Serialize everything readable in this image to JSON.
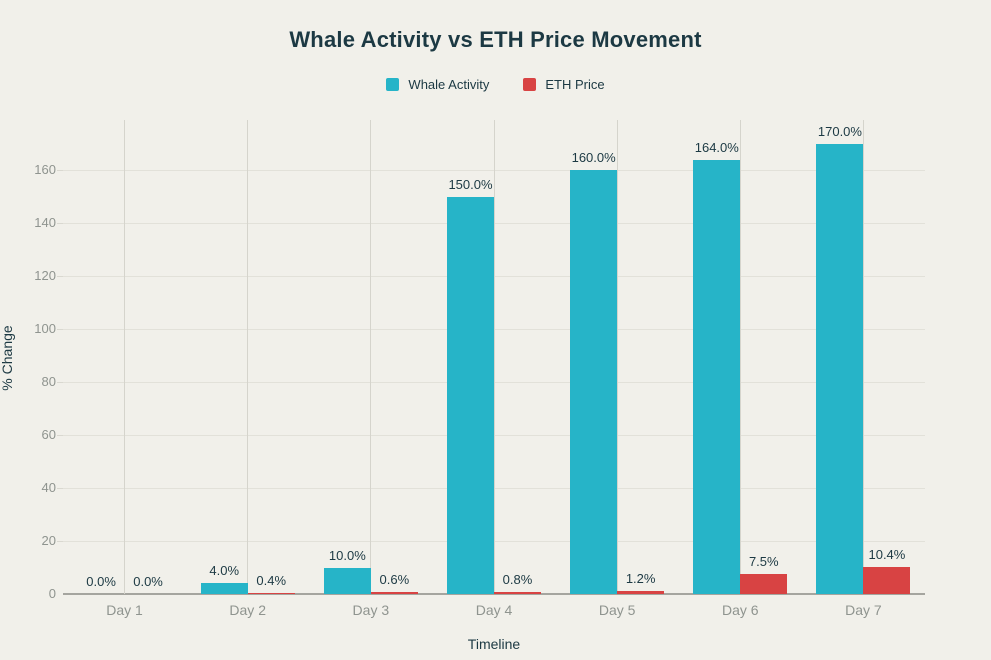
{
  "title": "Whale Activity vs ETH Price Movement",
  "colors": {
    "background": "#f1f0ea",
    "text_dark": "#1c3943",
    "text_gray": "#8f948f",
    "grid_horizontal": "#e2e1d9",
    "grid_vertical": "#d5d4cc",
    "tick_mark": "#d9d8d0",
    "axis_baseline": "#a5a59f",
    "whale_activity": "#26b4c8",
    "eth_price": "#d84343"
  },
  "legend": {
    "items": [
      {
        "label": "Whale Activity",
        "color": "#26b4c8"
      },
      {
        "label": "ETH Price",
        "color": "#d84343"
      }
    ]
  },
  "chart_data": {
    "type": "bar",
    "title": "Whale Activity vs ETH Price Movement",
    "xlabel": "Timeline",
    "ylabel": "% Change",
    "categories": [
      "Day 1",
      "Day 2",
      "Day 3",
      "Day 4",
      "Day 5",
      "Day 6",
      "Day 7"
    ],
    "series": [
      {
        "name": "Whale Activity",
        "color": "#26b4c8",
        "values": [
          0.0,
          4.0,
          10.0,
          150.0,
          160.0,
          164.0,
          170.0
        ],
        "labels": [
          "0.0%",
          "4.0%",
          "10.0%",
          "150.0%",
          "160.0%",
          "164.0%",
          "170.0%"
        ]
      },
      {
        "name": "ETH Price",
        "color": "#d84343",
        "values": [
          0.0,
          0.4,
          0.6,
          0.8,
          1.2,
          7.5,
          10.4
        ],
        "labels": [
          "0.0%",
          "0.4%",
          "0.6%",
          "0.8%",
          "1.2%",
          "7.5%",
          "10.4%"
        ]
      }
    ],
    "ylim": [
      0,
      179
    ],
    "yticks": [
      0,
      20,
      40,
      60,
      80,
      100,
      120,
      140,
      160
    ],
    "grid": true,
    "legend_position": "top"
  }
}
